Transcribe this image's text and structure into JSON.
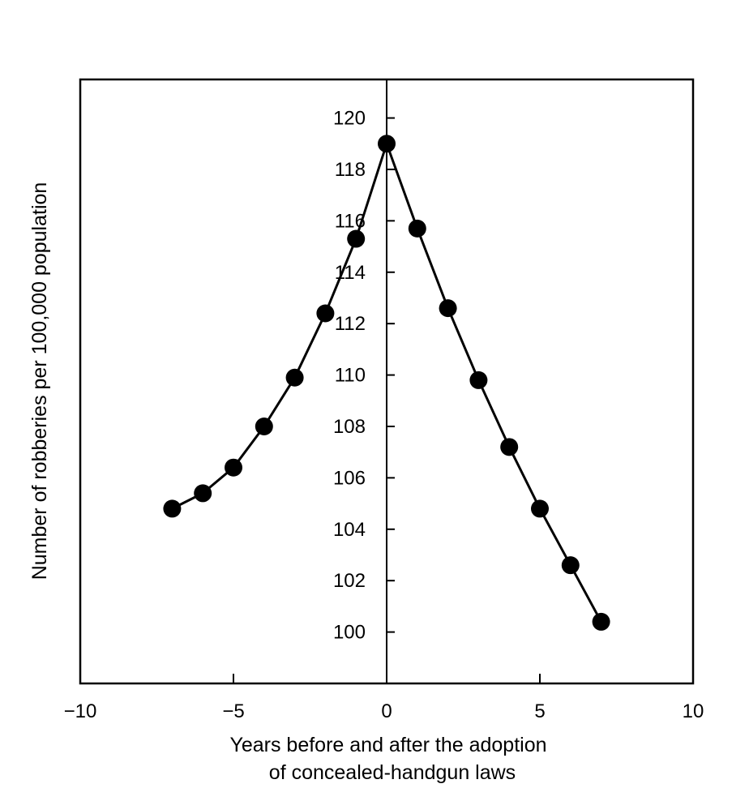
{
  "chart_data": {
    "type": "line",
    "title": "",
    "xlabel_lines": [
      "Years before and after the adoption",
      "of concealed-handgun laws"
    ],
    "ylabel": "Number of robberies per 100,000 population",
    "xlim": [
      -10,
      10
    ],
    "ylim": [
      98,
      121.5
    ],
    "x_ticks": [
      -10,
      -5,
      0,
      5,
      10
    ],
    "x_tick_labels": [
      "−10",
      "−5",
      "0",
      "5",
      "10"
    ],
    "y_ticks": [
      100,
      102,
      104,
      106,
      108,
      110,
      112,
      114,
      116,
      118,
      120
    ],
    "y_tick_labels": [
      "100",
      "102",
      "104",
      "106",
      "108",
      "110",
      "112",
      "114",
      "116",
      "118",
      "120"
    ],
    "grid": false,
    "markers": "filled-circle",
    "line_color": "#000000",
    "series": [
      {
        "x": [
          -7,
          -6,
          -5,
          -4,
          -3,
          -2,
          -1,
          0,
          1,
          2,
          3,
          4,
          5,
          6,
          7
        ],
        "y": [
          104.8,
          105.4,
          106.4,
          108.0,
          109.9,
          112.4,
          115.3,
          119.0,
          115.7,
          112.6,
          109.8,
          107.2,
          104.8,
          102.6,
          100.4
        ]
      }
    ]
  }
}
